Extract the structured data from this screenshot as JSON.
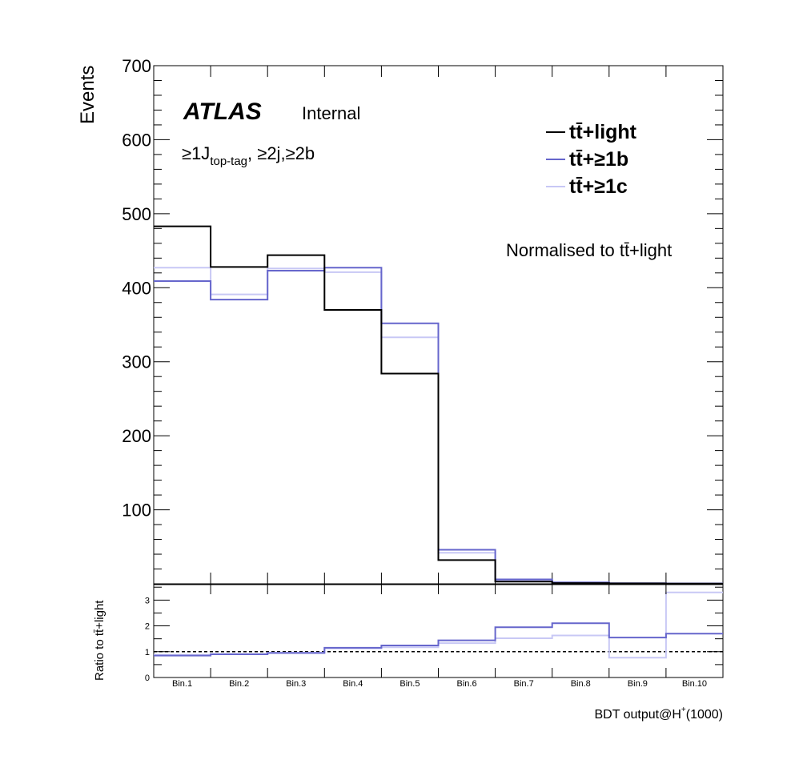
{
  "chart_data": {
    "type": "line",
    "step": true,
    "categories": [
      "Bin.1",
      "Bin.2",
      "Bin.3",
      "Bin.4",
      "Bin.5",
      "Bin.6",
      "Bin.7",
      "Bin.8",
      "Bin.9",
      "Bin.10"
    ],
    "xlabel_main": "BDT output@H",
    "xlabel_sup": "+",
    "xlabel_tail": "(1000)",
    "ylabel": "Events",
    "ylim": [
      0,
      700
    ],
    "yticks": [
      100,
      200,
      300,
      400,
      500,
      600,
      700
    ],
    "series": [
      {
        "name": "tt̄+light",
        "color": "#000000",
        "values": [
          483,
          428,
          444,
          370,
          284,
          32,
          3,
          1,
          0.5,
          0.2
        ]
      },
      {
        "name": "tt̄+≥1b",
        "color": "#6666cc",
        "values": [
          409,
          384,
          423,
          427,
          352,
          46,
          6,
          2,
          0.8,
          0.35
        ]
      },
      {
        "name": "tt̄+≥1c",
        "color": "#c8c8f5",
        "values": [
          427,
          391,
          426,
          421,
          333,
          42,
          4.5,
          1.6,
          0.4,
          0.7
        ]
      }
    ],
    "ratio": {
      "ylabel": "Ratio to tt̄+light",
      "ylim": [
        0,
        3.6
      ],
      "yticks": [
        0,
        1,
        2,
        3
      ],
      "reference": 1,
      "series": [
        {
          "name": "tt̄+≥1b",
          "color": "#6666cc",
          "values": [
            0.85,
            0.9,
            0.95,
            1.15,
            1.24,
            1.44,
            1.95,
            2.1,
            1.55,
            1.7
          ]
        },
        {
          "name": "tt̄+≥1c",
          "color": "#c8c8f5",
          "values": [
            0.88,
            0.91,
            0.96,
            1.13,
            1.17,
            1.33,
            1.52,
            1.63,
            0.77,
            3.3
          ]
        }
      ]
    },
    "legend_position": "top-right"
  },
  "labels": {
    "atlas": "ATLAS",
    "internal": "Internal",
    "selection_main": "≥1J",
    "selection_sub": "top-tag",
    "selection_tail": ", ≥2j,≥2b",
    "normalised": "Normalised to tt̄+light",
    "legend": [
      "tt̄+light",
      "tt̄+≥1b",
      "tt̄+≥1c"
    ]
  }
}
